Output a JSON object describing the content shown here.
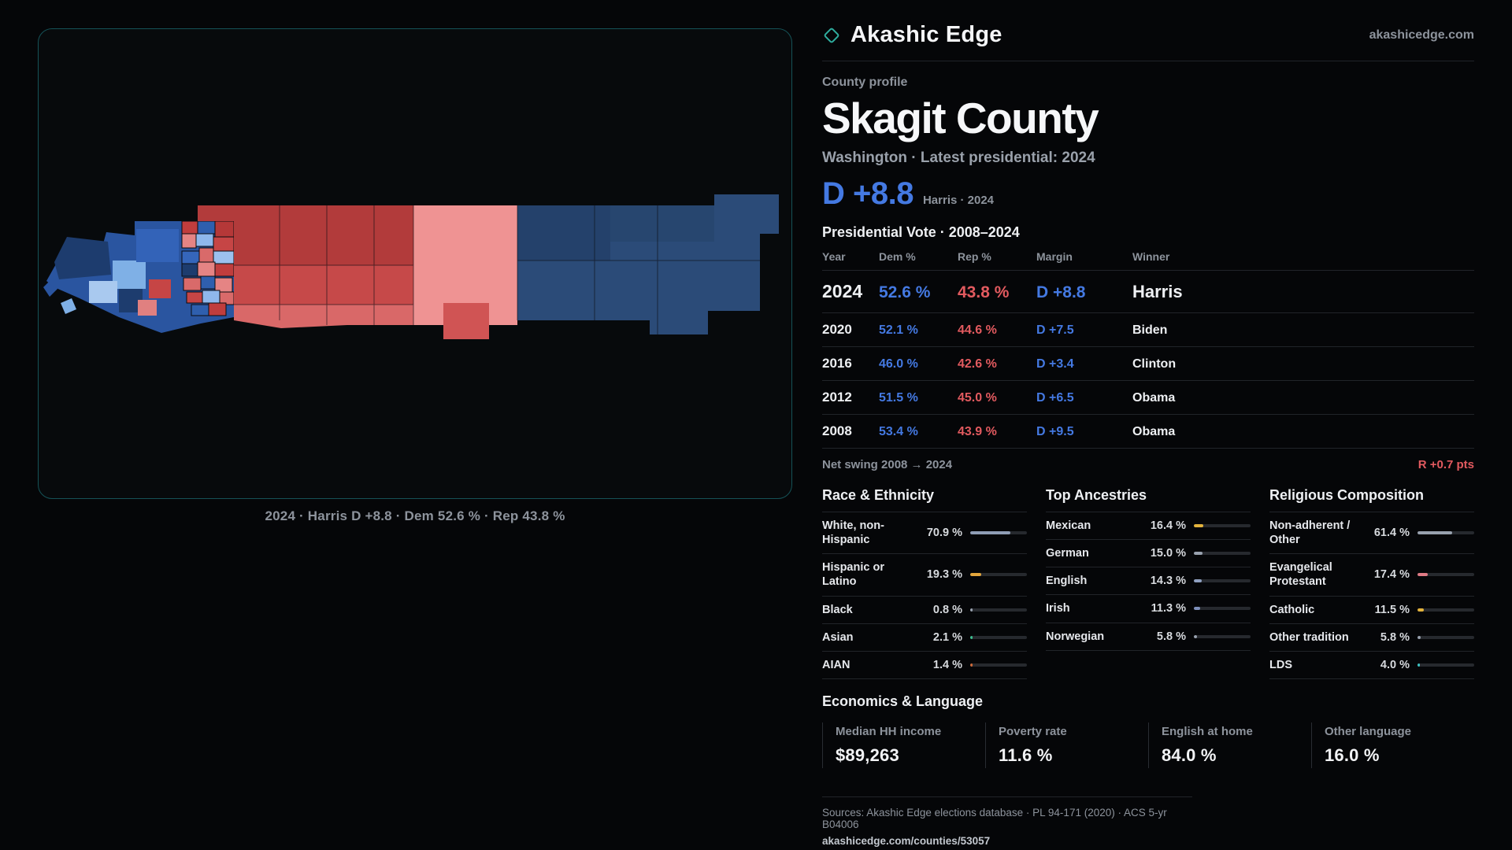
{
  "colors": {
    "bg": "#050608",
    "panel_bg": "#070a0c",
    "panel_border": "#155257",
    "dem_blue": "#4479e2",
    "rep_red": "#e25a5f",
    "teal": "#2fae9f",
    "muted": "#8d939c",
    "divider": "#212429",
    "bar_track": "#26292e",
    "text": "#eef0f3"
  },
  "header": {
    "brand": "Akashic Edge",
    "domain": "akashicedge.com"
  },
  "profile": {
    "kicker": "County profile",
    "title": "Skagit County",
    "subtitle": "Washington · Latest presidential: 2024",
    "margin_value": "D +8.8",
    "margin_note": "Harris · 2024"
  },
  "map_panel": {
    "caption": "2024 · Harris D +8.8 · Dem 52.6 % · Rep 43.8 %"
  },
  "vote_table": {
    "title": "Presidential Vote · 2008–2024",
    "columns": [
      "Year",
      "Dem %",
      "Rep %",
      "Margin",
      "Winner"
    ],
    "rows": [
      {
        "year": "2024",
        "dem": "52.6 %",
        "rep": "43.8 %",
        "margin": "D +8.8",
        "winner": "Harris",
        "big": true
      },
      {
        "year": "2020",
        "dem": "52.1 %",
        "rep": "44.6 %",
        "margin": "D +7.5",
        "winner": "Biden"
      },
      {
        "year": "2016",
        "dem": "46.0 %",
        "rep": "42.6 %",
        "margin": "D +3.4",
        "winner": "Clinton"
      },
      {
        "year": "2012",
        "dem": "51.5 %",
        "rep": "45.0 %",
        "margin": "D +6.5",
        "winner": "Obama"
      },
      {
        "year": "2008",
        "dem": "53.4 %",
        "rep": "43.9 %",
        "margin": "D +9.5",
        "winner": "Obama"
      }
    ],
    "net_swing_label": "Net swing 2008 → 2024",
    "net_swing_value": "R +0.7 pts"
  },
  "race": {
    "title": "Race & Ethnicity",
    "items": [
      {
        "label": "White, non-Hispanic",
        "value": "70.9 %",
        "pct": 70.9,
        "color": "#8f9db5"
      },
      {
        "label": "Hispanic or Latino",
        "value": "19.3 %",
        "pct": 19.3,
        "color": "#e3a63c"
      },
      {
        "label": "Black",
        "value": "0.8 %",
        "pct": 0.8,
        "color": "#9aa3b0"
      },
      {
        "label": "Asian",
        "value": "2.1 %",
        "pct": 2.1,
        "color": "#3dbd8f"
      },
      {
        "label": "AIAN",
        "value": "1.4 %",
        "pct": 1.4,
        "color": "#cf6a3a"
      }
    ]
  },
  "ancestries": {
    "title": "Top Ancestries",
    "items": [
      {
        "label": "Mexican",
        "value": "16.4 %",
        "pct": 16.4,
        "color": "#e3b33c"
      },
      {
        "label": "German",
        "value": "15.0 %",
        "pct": 15.0,
        "color": "#98a1ae"
      },
      {
        "label": "English",
        "value": "14.3 %",
        "pct": 14.3,
        "color": "#8fa0c0"
      },
      {
        "label": "Irish",
        "value": "11.3 %",
        "pct": 11.3,
        "color": "#7d8fba"
      },
      {
        "label": "Norwegian",
        "value": "5.8 %",
        "pct": 5.8,
        "color": "#98a1ae"
      }
    ]
  },
  "religion": {
    "title": "Religious Composition",
    "items": [
      {
        "label": "Non-adherent / Other",
        "value": "61.4 %",
        "pct": 61.4,
        "color": "#98a1ae"
      },
      {
        "label": "Evangelical Protestant",
        "value": "17.4 %",
        "pct": 17.4,
        "color": "#e07a85"
      },
      {
        "label": "Catholic",
        "value": "11.5 %",
        "pct": 11.5,
        "color": "#e3b33c"
      },
      {
        "label": "Other tradition",
        "value": "5.8 %",
        "pct": 5.8,
        "color": "#98a1ae"
      },
      {
        "label": "LDS",
        "value": "4.0 %",
        "pct": 4.0,
        "color": "#3cc4c4"
      }
    ]
  },
  "economics": {
    "title": "Economics & Language",
    "stats": [
      {
        "label": "Median HH income",
        "value": "$89,263"
      },
      {
        "label": "Poverty rate",
        "value": "11.6 %"
      },
      {
        "label": "English at home",
        "value": "84.0 %"
      },
      {
        "label": "Other language",
        "value": "16.0 %"
      }
    ]
  },
  "footer": {
    "sources": "Sources: Akashic Edge elections database · PL 94-171 (2020) · ACS 5-yr B04006",
    "permalink": "akashicedge.com/counties/53057"
  }
}
